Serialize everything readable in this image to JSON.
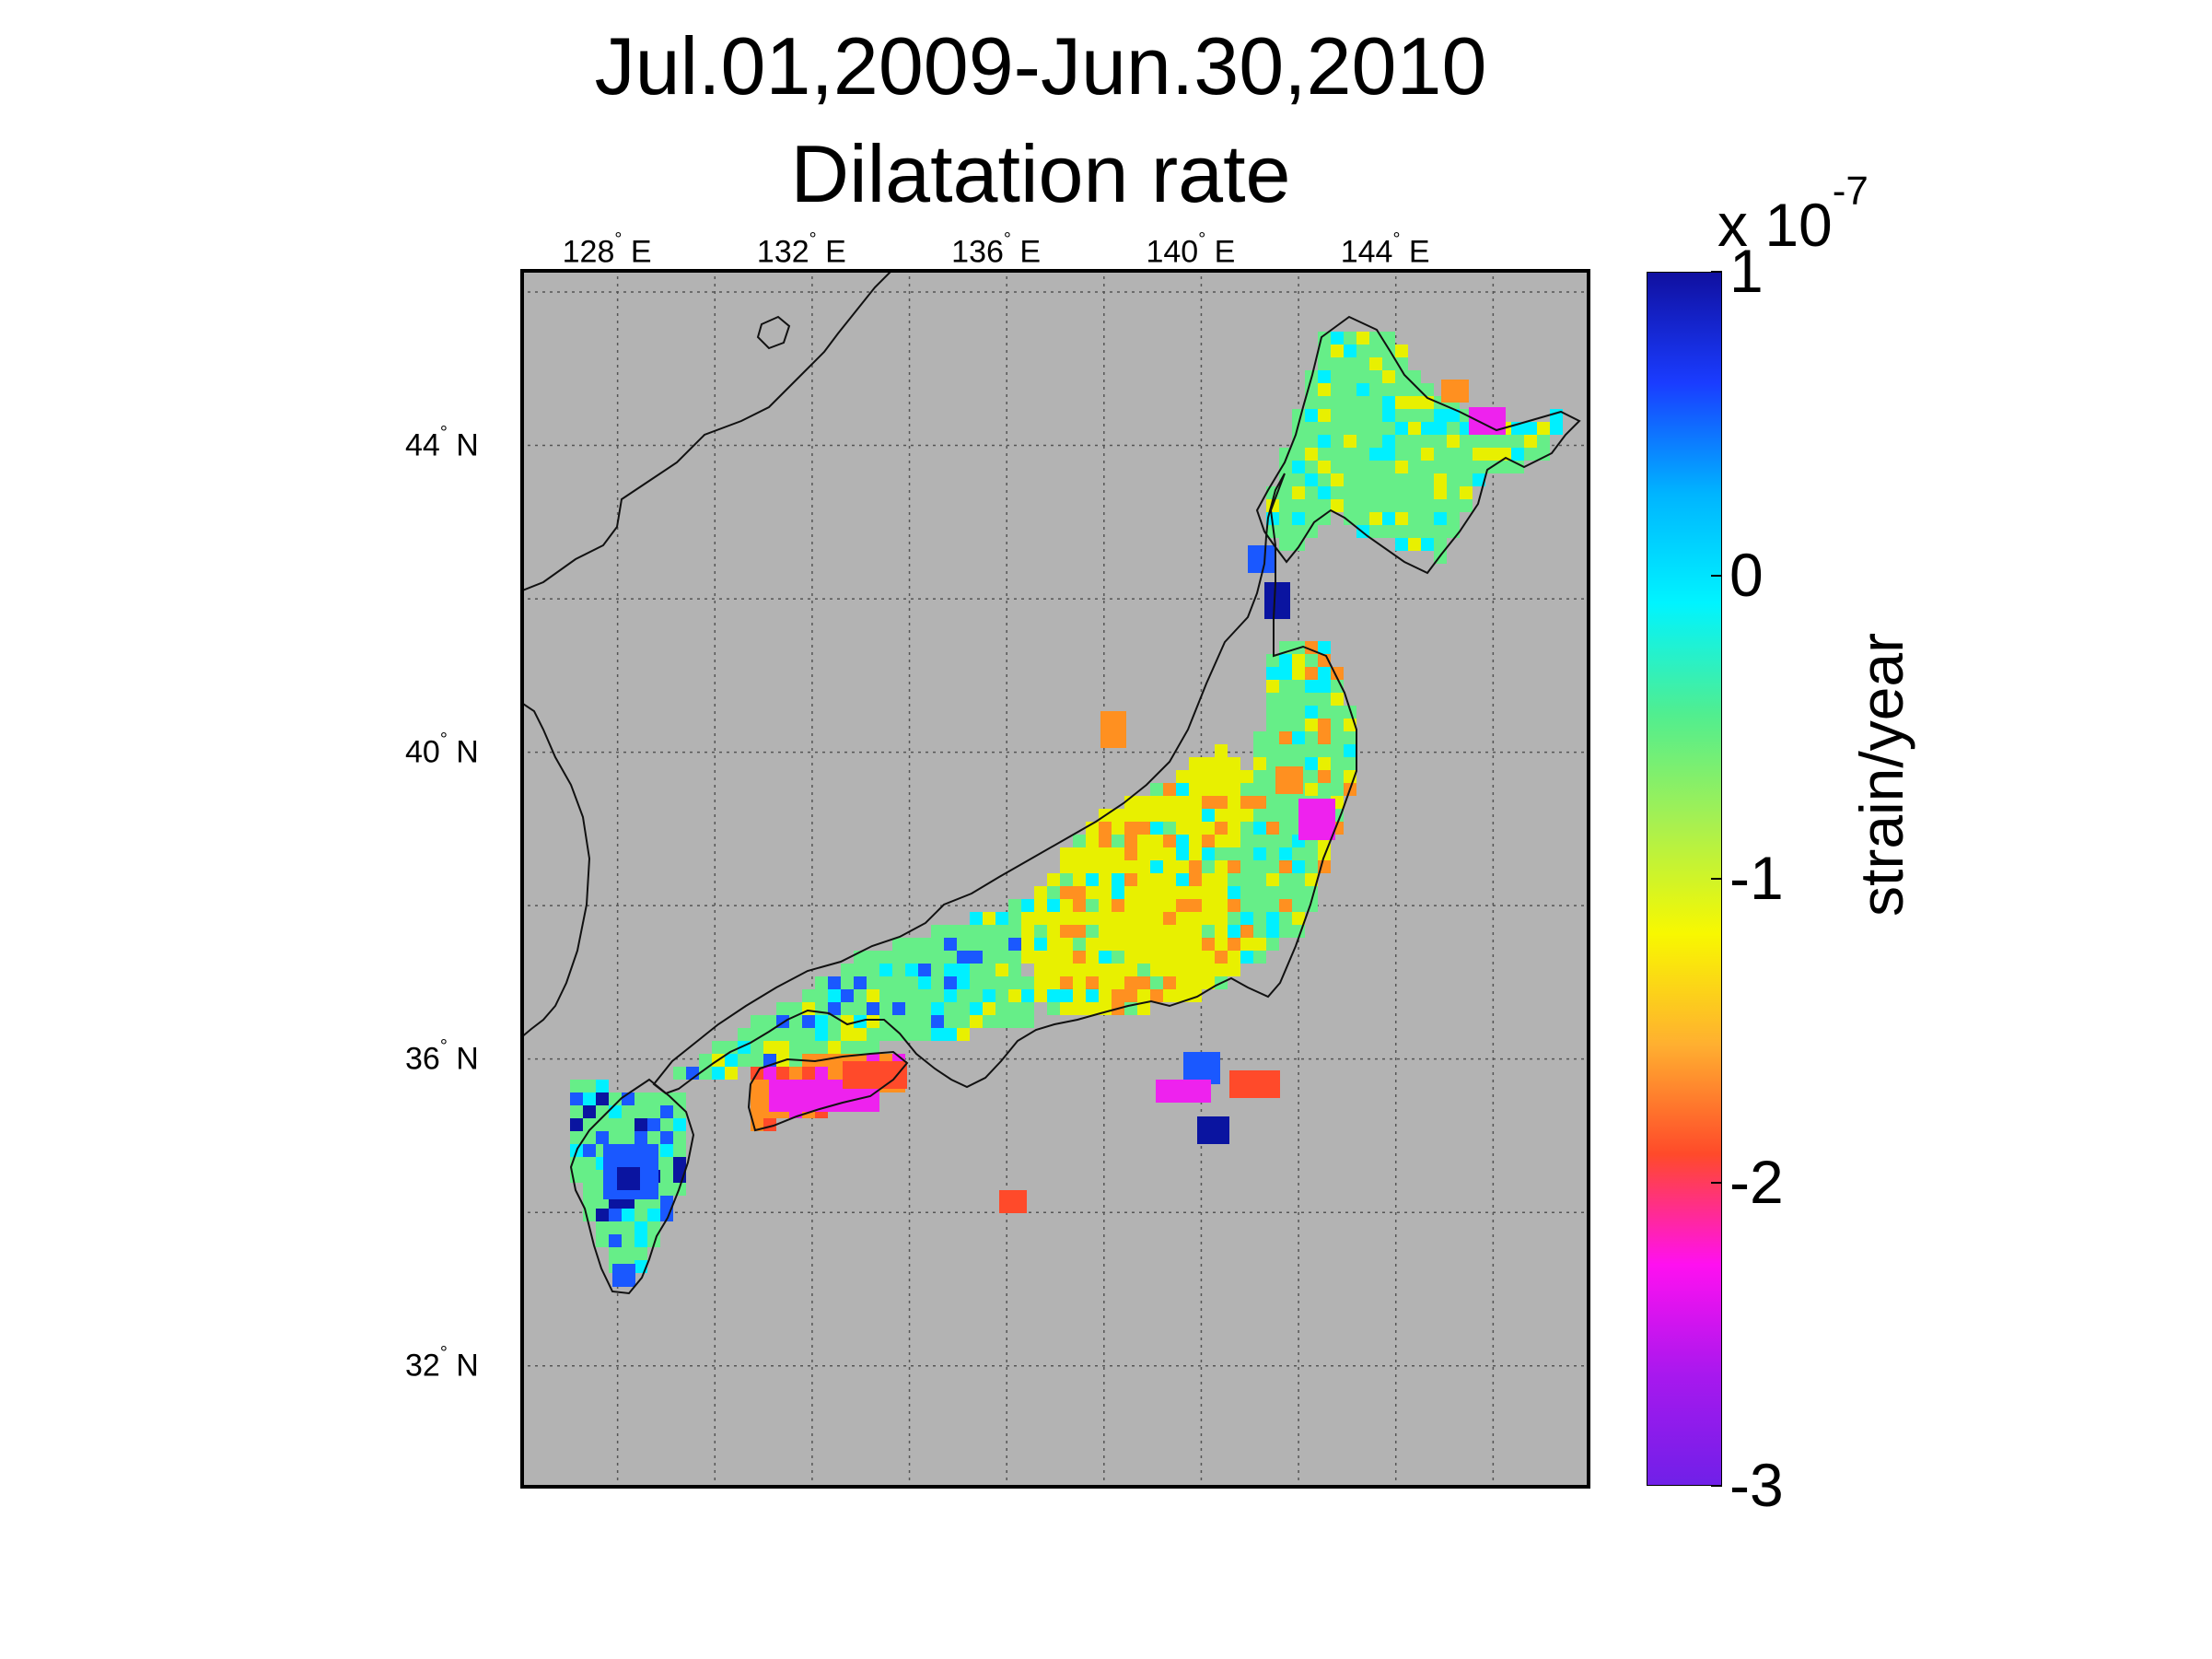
{
  "title": {
    "line1": "Jul.01,2009-Jun.30,2010",
    "line2": "Dilatation rate"
  },
  "map": {
    "lon_ticks": [
      {
        "value": 128,
        "deg": "128",
        "hemi": "E"
      },
      {
        "value": 132,
        "deg": "132",
        "hemi": "E"
      },
      {
        "value": 136,
        "deg": "136",
        "hemi": "E"
      },
      {
        "value": 140,
        "deg": "140",
        "hemi": "E"
      },
      {
        "value": 144,
        "deg": "144",
        "hemi": "E"
      }
    ],
    "lat_ticks": [
      {
        "value": 44,
        "deg": "44",
        "hemi": "N"
      },
      {
        "value": 40,
        "deg": "40",
        "hemi": "N"
      },
      {
        "value": 36,
        "deg": "36",
        "hemi": "N"
      },
      {
        "value": 32,
        "deg": "32",
        "hemi": "N"
      }
    ],
    "lon_range": [
      126,
      148
    ],
    "lat_range": [
      30.4,
      46.3
    ],
    "background_color": "#b3b3b3",
    "grid_style": "dotted",
    "colors": {
      "cyan": "#00f0ff",
      "green": "#66ee88",
      "yellow": "#e8f000",
      "orange": "#ff9020",
      "red": "#ff4a2a",
      "magenta": "#ee22ee",
      "blue": "#1a58ff",
      "darkblue": "#0a14a0"
    }
  },
  "colorbar": {
    "min": -3,
    "max": 1,
    "tick_labels": [
      "1",
      "0",
      "-1",
      "-2",
      "-3"
    ],
    "multiplier_prefix": "x 10",
    "multiplier_exponent": "-7",
    "label": "strain/year",
    "colormap": [
      "#1010a0",
      "#1a3cff",
      "#00b4ff",
      "#00f4ff",
      "#50ee90",
      "#a8f050",
      "#f8f800",
      "#ffb030",
      "#ff4a2a",
      "#ff10f0",
      "#a818ee",
      "#7020e8"
    ]
  }
}
